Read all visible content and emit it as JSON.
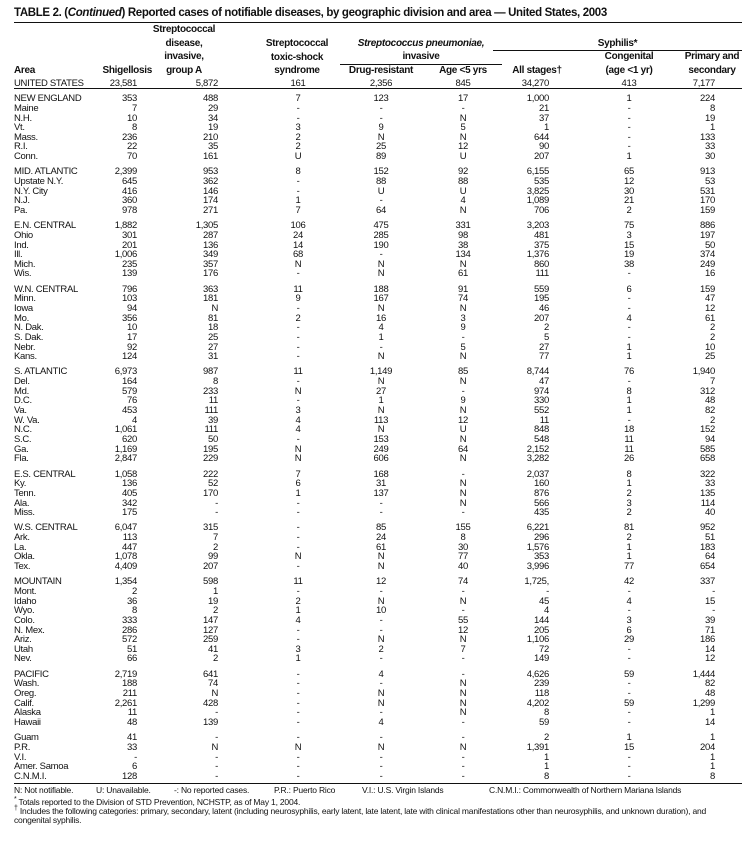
{
  "title": {
    "prefix": "TABLE 2. (",
    "italic": "Continued",
    "rest": ") Reported cases of notifiable diseases, by geographic division and area — United States, 2003"
  },
  "headers": {
    "area": "Area",
    "shigellosis": "Shigellosis",
    "strep_a": [
      "Streptococcal",
      "disease,",
      "invasive,",
      "group A"
    ],
    "strep_tss": [
      "Streptococcal",
      "toxic-shock",
      "syndrome"
    ],
    "pneumo_title": "Streptococcus pneumoniae,",
    "pneumo_sub": "invasive",
    "drug_resistant": "Drug-resistant",
    "age5": "Age <5 yrs",
    "syphilis": "Syphilis*",
    "all_stages": "All stages†",
    "congenital": [
      "Congenital",
      "(age <1 yr)"
    ],
    "primary": [
      "Primary and",
      "secondary"
    ]
  },
  "groups": [
    {
      "rows": [
        [
          "UNITED STATES",
          "23,581",
          "5,872",
          "161",
          "2,356",
          "845",
          "34,270",
          "413",
          "7,177"
        ]
      ]
    },
    {
      "rows": [
        [
          "NEW ENGLAND",
          "353",
          "488",
          "7",
          "123",
          "17",
          "1,000",
          "1",
          "224"
        ],
        [
          "Maine",
          "7",
          "29",
          "-",
          "-",
          "-",
          "21",
          "-",
          "8"
        ],
        [
          "N.H.",
          "10",
          "34",
          "-",
          "-",
          "N",
          "37",
          "-",
          "19"
        ],
        [
          "Vt.",
          "8",
          "19",
          "3",
          "9",
          "5",
          "1",
          "-",
          "1"
        ],
        [
          "Mass.",
          "236",
          "210",
          "2",
          "N",
          "N",
          "644",
          "-",
          "133"
        ],
        [
          "R.I.",
          "22",
          "35",
          "2",
          "25",
          "12",
          "90",
          "-",
          "33"
        ],
        [
          "Conn.",
          "70",
          "161",
          "U",
          "89",
          "U",
          "207",
          "1",
          "30"
        ]
      ]
    },
    {
      "rows": [
        [
          "MID. ATLANTIC",
          "2,399",
          "953",
          "8",
          "152",
          "92",
          "6,155",
          "65",
          "913"
        ],
        [
          "Upstate N.Y.",
          "645",
          "362",
          "-",
          "88",
          "88",
          "535",
          "12",
          "53"
        ],
        [
          "N.Y. City",
          "416",
          "146",
          "-",
          "U",
          "U",
          "3,825",
          "30",
          "531"
        ],
        [
          "N.J.",
          "360",
          "174",
          "1",
          "-",
          "4",
          "1,089",
          "21",
          "170"
        ],
        [
          "Pa.",
          "978",
          "271",
          "7",
          "64",
          "N",
          "706",
          "2",
          "159"
        ]
      ]
    },
    {
      "rows": [
        [
          "E.N. CENTRAL",
          "1,882",
          "1,305",
          "106",
          "475",
          "331",
          "3,203",
          "75",
          "886"
        ],
        [
          "Ohio",
          "301",
          "287",
          "24",
          "285",
          "98",
          "481",
          "3",
          "197"
        ],
        [
          "Ind.",
          "201",
          "136",
          "14",
          "190",
          "38",
          "375",
          "15",
          "50"
        ],
        [
          "Ill.",
          "1,006",
          "349",
          "68",
          "-",
          "134",
          "1,376",
          "19",
          "374"
        ],
        [
          "Mich.",
          "235",
          "357",
          "N",
          "N",
          "N",
          "860",
          "38",
          "249"
        ],
        [
          "Wis.",
          "139",
          "176",
          "-",
          "N",
          "61",
          "111",
          "-",
          "16"
        ]
      ]
    },
    {
      "rows": [
        [
          "W.N. CENTRAL",
          "796",
          "363",
          "11",
          "188",
          "91",
          "559",
          "6",
          "159"
        ],
        [
          "Minn.",
          "103",
          "181",
          "9",
          "167",
          "74",
          "195",
          "-",
          "47"
        ],
        [
          "Iowa",
          "94",
          "N",
          "-",
          "N",
          "N",
          "46",
          "-",
          "12"
        ],
        [
          "Mo.",
          "356",
          "81",
          "2",
          "16",
          "3",
          "207",
          "4",
          "61"
        ],
        [
          "N. Dak.",
          "10",
          "18",
          "-",
          "4",
          "9",
          "2",
          "-",
          "2"
        ],
        [
          "S. Dak.",
          "17",
          "25",
          "-",
          "1",
          "-",
          "5",
          "-",
          "2"
        ],
        [
          "Nebr.",
          "92",
          "27",
          "-",
          "-",
          "5",
          "27",
          "1",
          "10"
        ],
        [
          "Kans.",
          "124",
          "31",
          "-",
          "N",
          "N",
          "77",
          "1",
          "25"
        ]
      ]
    },
    {
      "rows": [
        [
          "S. ATLANTIC",
          "6,973",
          "987",
          "11",
          "1,149",
          "85",
          "8,744",
          "76",
          "1,940"
        ],
        [
          "Del.",
          "164",
          "8",
          "-",
          "N",
          "N",
          "47",
          "-",
          "7"
        ],
        [
          "Md.",
          "579",
          "233",
          "N",
          "27",
          "-",
          "974",
          "8",
          "312"
        ],
        [
          "D.C.",
          "76",
          "11",
          "-",
          "1",
          "9",
          "330",
          "1",
          "48"
        ],
        [
          "Va.",
          "453",
          "111",
          "3",
          "N",
          "N",
          "552",
          "1",
          "82"
        ],
        [
          "W. Va.",
          "4",
          "39",
          "4",
          "113",
          "12",
          "11",
          "-",
          "2"
        ],
        [
          "N.C.",
          "1,061",
          "111",
          "4",
          "N",
          "U",
          "848",
          "18",
          "152"
        ],
        [
          "S.C.",
          "620",
          "50",
          "-",
          "153",
          "N",
          "548",
          "11",
          "94"
        ],
        [
          "Ga.",
          "1,169",
          "195",
          "N",
          "249",
          "64",
          "2,152",
          "11",
          "585"
        ],
        [
          "Fla.",
          "2,847",
          "229",
          "N",
          "606",
          "N",
          "3,282",
          "26",
          "658"
        ]
      ]
    },
    {
      "rows": [
        [
          "E.S. CENTRAL",
          "1,058",
          "222",
          "7",
          "168",
          "-",
          "2,037",
          "8",
          "322"
        ],
        [
          "Ky.",
          "136",
          "52",
          "6",
          "31",
          "N",
          "160",
          "1",
          "33"
        ],
        [
          "Tenn.",
          "405",
          "170",
          "1",
          "137",
          "N",
          "876",
          "2",
          "135"
        ],
        [
          "Ala.",
          "342",
          "-",
          "-",
          "-",
          "N",
          "566",
          "3",
          "114"
        ],
        [
          "Miss.",
          "175",
          "-",
          "-",
          "-",
          "-",
          "435",
          "2",
          "40"
        ]
      ]
    },
    {
      "rows": [
        [
          "W.S. CENTRAL",
          "6,047",
          "315",
          "-",
          "85",
          "155",
          "6,221",
          "81",
          "952"
        ],
        [
          "Ark.",
          "113",
          "7",
          "-",
          "24",
          "8",
          "296",
          "2",
          "51"
        ],
        [
          "La.",
          "447",
          "2",
          "-",
          "61",
          "30",
          "1,576",
          "1",
          "183"
        ],
        [
          "Okla.",
          "1,078",
          "99",
          "N",
          "N",
          "77",
          "353",
          "1",
          "64"
        ],
        [
          "Tex.",
          "4,409",
          "207",
          "-",
          "N",
          "40",
          "3,996",
          "77",
          "654"
        ]
      ]
    },
    {
      "rows": [
        [
          "MOUNTAIN",
          "1,354",
          "598",
          "11",
          "12",
          "74",
          "1,725,",
          "42",
          "337"
        ],
        [
          "Mont.",
          "2",
          "1",
          "-",
          "-",
          "-",
          "-",
          "-",
          "-"
        ],
        [
          "Idaho",
          "36",
          "19",
          "2",
          "N",
          "N",
          "45",
          "4",
          "15"
        ],
        [
          "Wyo.",
          "8",
          "2",
          "1",
          "10",
          "-",
          "4",
          "-",
          "-"
        ],
        [
          "Colo.",
          "333",
          "147",
          "4",
          "-",
          "55",
          "144",
          "3",
          "39"
        ],
        [
          "N. Mex.",
          "286",
          "127",
          "-",
          "-",
          "12",
          "205",
          "6",
          "71"
        ],
        [
          "Ariz.",
          "572",
          "259",
          "-",
          "N",
          "N",
          "1,106",
          "29",
          "186"
        ],
        [
          "Utah",
          "51",
          "41",
          "3",
          "2",
          "7",
          "72",
          "-",
          "14"
        ],
        [
          "Nev.",
          "66",
          "2",
          "1",
          "-",
          "-",
          "149",
          "-",
          "12"
        ]
      ]
    },
    {
      "rows": [
        [
          "PACIFIC",
          "2,719",
          "641",
          "-",
          "4",
          "-",
          "4,626",
          "59",
          "1,444"
        ],
        [
          "Wash.",
          "188",
          "74",
          "-",
          "-",
          "N",
          "239",
          "-",
          "82"
        ],
        [
          "Oreg.",
          "211",
          "N",
          "-",
          "N",
          "N",
          "118",
          "-",
          "48"
        ],
        [
          "Calif.",
          "2,261",
          "428",
          "-",
          "N",
          "N",
          "4,202",
          "59",
          "1,299"
        ],
        [
          "Alaska",
          "11",
          "-",
          "-",
          "-",
          "N",
          "8",
          "-",
          "1"
        ],
        [
          "Hawaii",
          "48",
          "139",
          "-",
          "4",
          "-",
          "59",
          "-",
          "14"
        ]
      ]
    },
    {
      "rows": [
        [
          "Guam",
          "41",
          "-",
          "-",
          "-",
          "-",
          "2",
          "1",
          "1"
        ],
        [
          "P.R.",
          "33",
          "N",
          "N",
          "N",
          "N",
          "1,391",
          "15",
          "204"
        ],
        [
          "V.I.",
          "-",
          "-",
          "-",
          "-",
          "-",
          "1",
          "-",
          "1"
        ],
        [
          "Amer. Samoa",
          "6",
          "-",
          "-",
          "-",
          "-",
          "1",
          "-",
          "1"
        ],
        [
          "C.N.M.I.",
          "128",
          "-",
          "-",
          "-",
          "-",
          "8",
          "-",
          "8"
        ]
      ]
    }
  ],
  "footnotes": {
    "legend": [
      "N: Not notifiable.",
      "U: Unavailable.",
      "-: No reported cases.",
      "P.R.: Puerto Rico",
      "V.I.: U.S. Virgin Islands",
      "C.N.M.I.: Commonwealth of Northern Mariana Islands"
    ],
    "star_mark": "*",
    "star": "Totals reported to the Division of STD Prevention, NCHSTP, as of May 1, 2004.",
    "dagger_mark": "†",
    "dagger": "Includes the following categories: primary, secondary, latent (including neurosyphilis, early latent, late latent, late with clinical manifestations other than neurosyphilis, and unknown duration), and congenital syphilis."
  }
}
